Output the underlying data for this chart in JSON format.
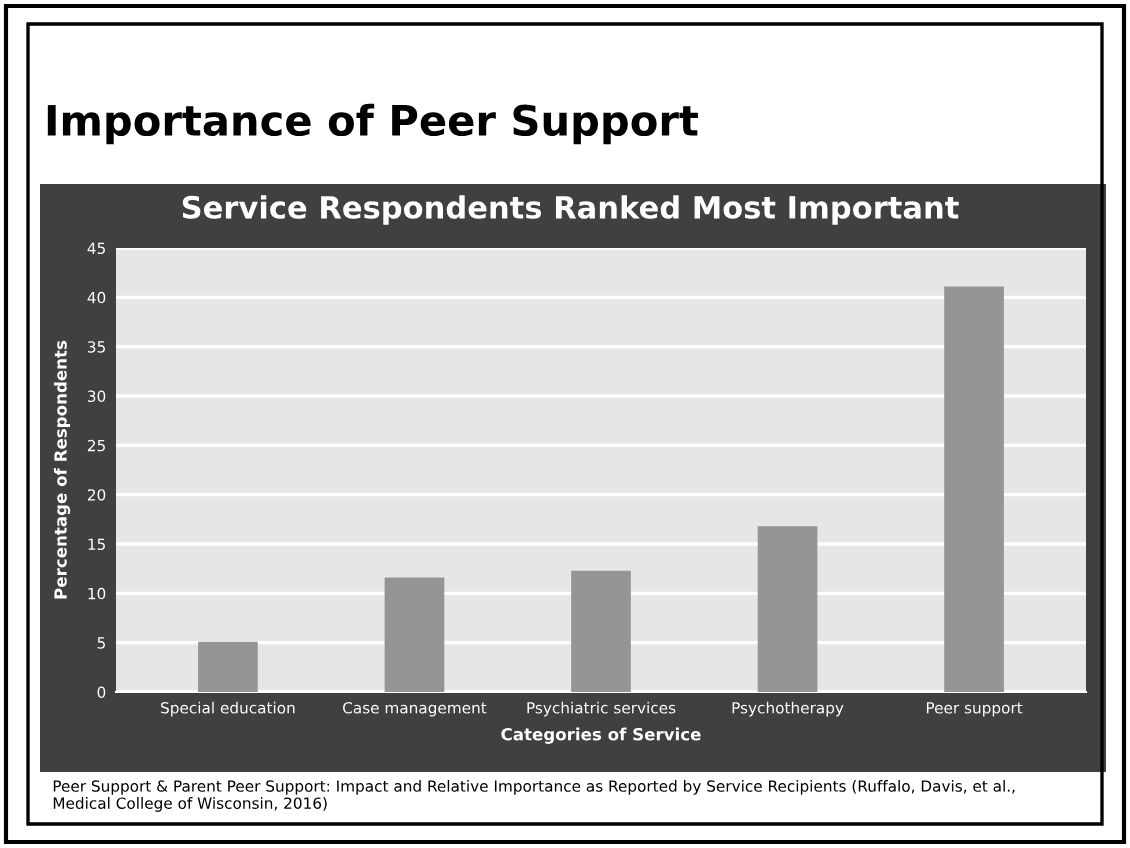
{
  "chart_data": {
    "type": "bar",
    "title": "Importance of Peer Support",
    "subtitle": "Service Respondents Ranked Most Important",
    "xlabel": "Categories of Service",
    "ylabel": "Percentage of Respondents",
    "categories": [
      "Special education",
      "Case management",
      "Psychiatric services",
      "Psychotherapy",
      "Peer support"
    ],
    "values": [
      5.1,
      11.6,
      12.3,
      16.8,
      41.1
    ],
    "color": "#959595",
    "ylim": [
      0,
      45
    ],
    "yticks": [
      0,
      5,
      10,
      15,
      20,
      25,
      30,
      35,
      40,
      45
    ],
    "grid": "y",
    "annotations": [
      "Peer Support & Parent Peer Support: Impact and Relative Importance as Reported by Service Recipients (Ruffalo, Davis, et al., Medical College of Wisconsin, 2016)"
    ]
  }
}
